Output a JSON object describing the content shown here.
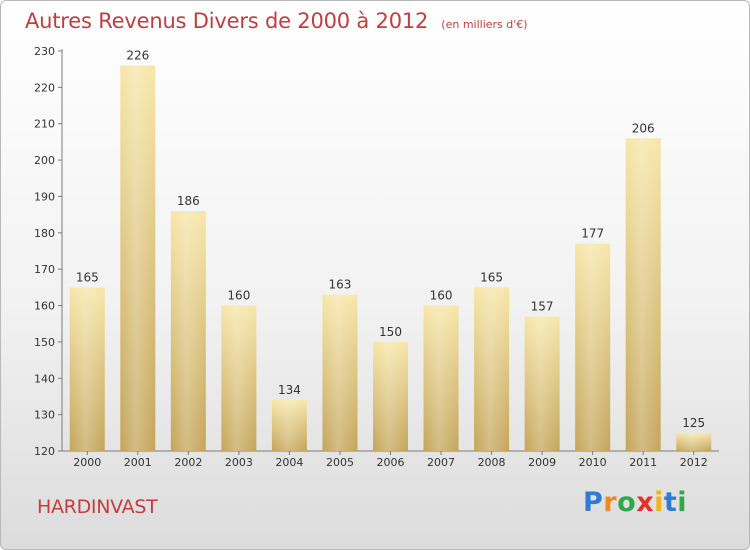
{
  "title": "Autres Revenus Divers de 2000 à 2012",
  "subtitle": "(en milliers d'€)",
  "place_name": "HARDINVAST",
  "logo": {
    "letters": [
      "P",
      "r",
      "o",
      "x",
      "i",
      "t",
      "i"
    ],
    "colors": [
      "#2e7bd6",
      "#f08a1c",
      "#2fa84a",
      "#e2312b",
      "#f2b21a",
      "#2e7bd6",
      "#2fa84a"
    ]
  },
  "colors": {
    "bar_light": "#f6e3a3",
    "bar_dark": "#c7a85a",
    "title": "#c23e3e"
  },
  "chart_data": {
    "type": "bar",
    "title": "Autres Revenus Divers de 2000 à 2012",
    "categories": [
      "2000",
      "2001",
      "2002",
      "2003",
      "2004",
      "2005",
      "2006",
      "2007",
      "2008",
      "2009",
      "2010",
      "2011",
      "2012"
    ],
    "values": [
      165,
      226,
      186,
      160,
      134,
      163,
      150,
      160,
      165,
      157,
      177,
      206,
      125
    ],
    "data_labels": [
      "165",
      "226",
      "186",
      "160",
      "134",
      "163",
      "150",
      "160",
      "165",
      "157",
      "177",
      "206",
      "125"
    ],
    "yticks": [
      120,
      130,
      140,
      150,
      160,
      170,
      180,
      190,
      200,
      210,
      220,
      230
    ],
    "ylim": [
      120,
      230
    ],
    "xlabel": "",
    "ylabel": "",
    "grid": false,
    "legend": false
  }
}
